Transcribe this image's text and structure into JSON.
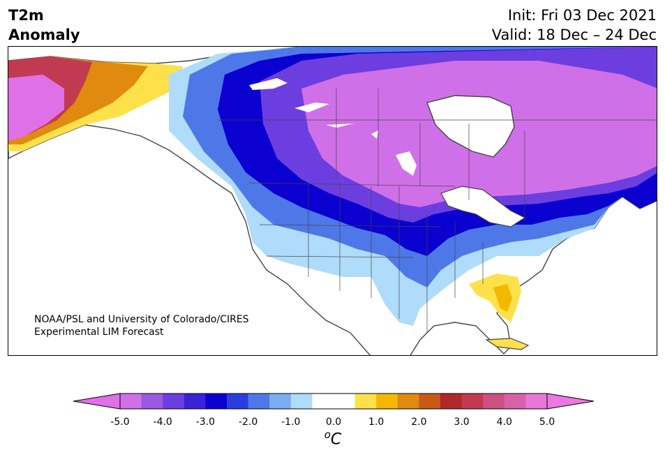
{
  "title": {
    "line1": "T2m",
    "line2": "Anomaly"
  },
  "dates": {
    "init": "Init: Fri 03 Dec 2021",
    "valid": "Valid: 18 Dec – 24 Dec"
  },
  "credit": {
    "line1": "NOAA/PSL and University of Colorado/CIRES",
    "line2": "Experimental LIM Forecast"
  },
  "colorbar": {
    "ticks": [
      "-5.0",
      "-4.0",
      "-3.0",
      "-2.0",
      "-1.0",
      "0.0",
      "1.0",
      "2.0",
      "3.0",
      "4.0",
      "5.0"
    ],
    "units_base": "C",
    "units_sup": "o",
    "colors": [
      "#d070e8",
      "#9b58e0",
      "#6c3ee0",
      "#3a22d8",
      "#0a00d0",
      "#2a3ee0",
      "#4e78e8",
      "#79aef2",
      "#aedcfa",
      "#ffffff",
      "#ffffff",
      "#fee14a",
      "#f4b800",
      "#e08a10",
      "#c85a18",
      "#b02828",
      "#c23a52",
      "#cc5080",
      "#d862a8",
      "#e878d6"
    ],
    "under_color": "#e070e8",
    "over_color": "#ea78e0"
  }
}
